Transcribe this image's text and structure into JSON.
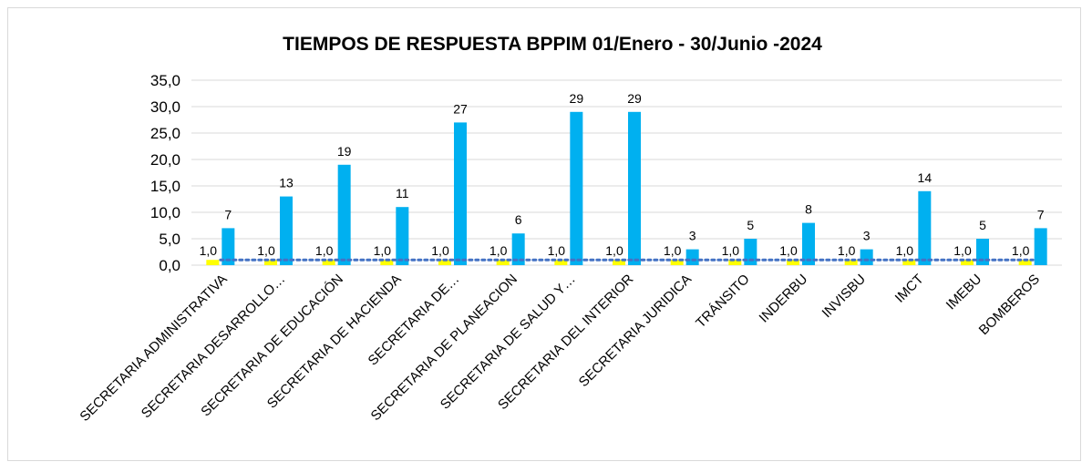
{
  "chart_data": {
    "type": "bar",
    "title": "TIEMPOS DE RESPUESTA BPPIM  01/Enero - 30/Junio -2024",
    "categories": [
      "SECRETARIA ADMINISTRATIVA",
      "SECRETARIA DESARROLLO…",
      "SECRETARIA DE EDUCACIÓN",
      "SECRETARIA DE HACIENDA",
      "SECRETARIA DE…",
      "SECRETARIA DE PLANEACION",
      "SECRETARIA DE SALUD Y…",
      "SECRETARIA DEL INTERIOR",
      "SECRETARIA JURIDICA",
      "TRÁNSITO",
      "INDERBU",
      "INVISBU",
      "IMCT",
      "IMEBU",
      "BOMBEROS"
    ],
    "series": [
      {
        "type": "bar",
        "color": "#ffff00",
        "values": [
          1,
          1,
          1,
          1,
          1,
          1,
          1,
          1,
          1,
          1,
          1,
          1,
          1,
          1,
          1
        ],
        "value_labels": [
          "1,0",
          "1,0",
          "1,0",
          "1,0",
          "1,0",
          "1,0",
          "1,0",
          "1,0",
          "1,0",
          "1,0",
          "1,0",
          "1,0",
          "1,0",
          "1,0",
          "1,0"
        ]
      },
      {
        "type": "bar",
        "color": "#00b0f0",
        "values": [
          7,
          13,
          19,
          11,
          27,
          6,
          29,
          29,
          3,
          5,
          8,
          3,
          14,
          5,
          7
        ]
      },
      {
        "type": "line",
        "color": "#4472c4",
        "linestyle": "dotted",
        "values": [
          1,
          1,
          1,
          1,
          1,
          1,
          1,
          1,
          1,
          1,
          1,
          1,
          1,
          1,
          1
        ]
      }
    ],
    "ylim": [
      0,
      35
    ],
    "yticks": [
      {
        "value": 0,
        "label": "0,0"
      },
      {
        "value": 5,
        "label": "5,0"
      },
      {
        "value": 10,
        "label": "10,0"
      },
      {
        "value": 15,
        "label": "15,0"
      },
      {
        "value": 20,
        "label": "20,0"
      },
      {
        "value": 25,
        "label": "25,0"
      },
      {
        "value": 30,
        "label": "30,0"
      },
      {
        "value": 35,
        "label": "35,0"
      }
    ],
    "grid": true
  }
}
